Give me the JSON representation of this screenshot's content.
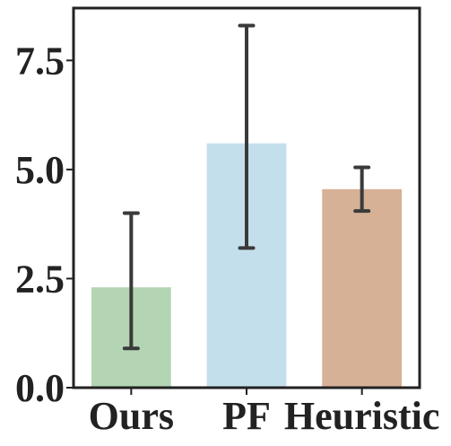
{
  "chart_data": {
    "type": "bar",
    "categories": [
      "Ours",
      "PF",
      "Heuristic"
    ],
    "values": [
      2.3,
      5.6,
      4.55
    ],
    "error_low": [
      0.9,
      3.2,
      4.05
    ],
    "error_high": [
      4.0,
      8.3,
      5.05
    ],
    "colors": [
      "#b3d5b3",
      "#c4dfec",
      "#d6b196"
    ],
    "errorbar_color": "#3a3a3a",
    "yticks": [
      0.0,
      2.5,
      5.0,
      7.5
    ],
    "ytick_labels": [
      "0.0",
      "2.5",
      "5.0",
      "7.5"
    ],
    "ylim": [
      0,
      8.7
    ],
    "title": "",
    "xlabel": "",
    "ylabel": "",
    "grid": false
  }
}
